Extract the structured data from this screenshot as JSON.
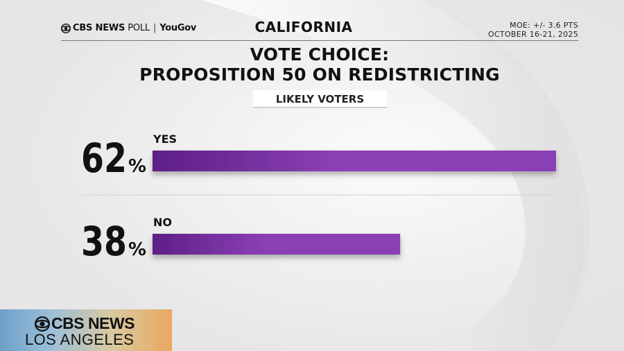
{
  "header": {
    "brand_network": "CBS NEWS",
    "brand_poll": "POLL",
    "brand_separator": "|",
    "brand_partner": "YouGov",
    "state": "CALIFORNIA",
    "moe": "MOE: +/- 3.6 PTS",
    "dates": "OCTOBER 16-21, 2025"
  },
  "title": {
    "line1": "VOTE CHOICE:",
    "line2": "PROPOSITION 50 ON REDISTRICTING"
  },
  "subgroup": "LIKELY VOTERS",
  "chart_data": {
    "type": "bar",
    "orientation": "horizontal",
    "title": "VOTE CHOICE: PROPOSITION 50 ON REDISTRICTING",
    "subtitle": "LIKELY VOTERS",
    "categories": [
      "YES",
      "NO"
    ],
    "values": [
      62,
      38
    ],
    "value_labels": [
      "62",
      "38"
    ],
    "unit": "%",
    "xlim": [
      0,
      100
    ],
    "bar_colors": [
      "#8a3fb4",
      "#8a3fb4"
    ],
    "grid": false,
    "legend": "none"
  },
  "logo": {
    "line1": "CBS NEWS",
    "line2": "LOS ANGELES",
    "icon": "cbs-eye-icon"
  },
  "colors": {
    "bar": "#8a3fb4",
    "bar_dark": "#5e1f86",
    "text": "#111111"
  }
}
